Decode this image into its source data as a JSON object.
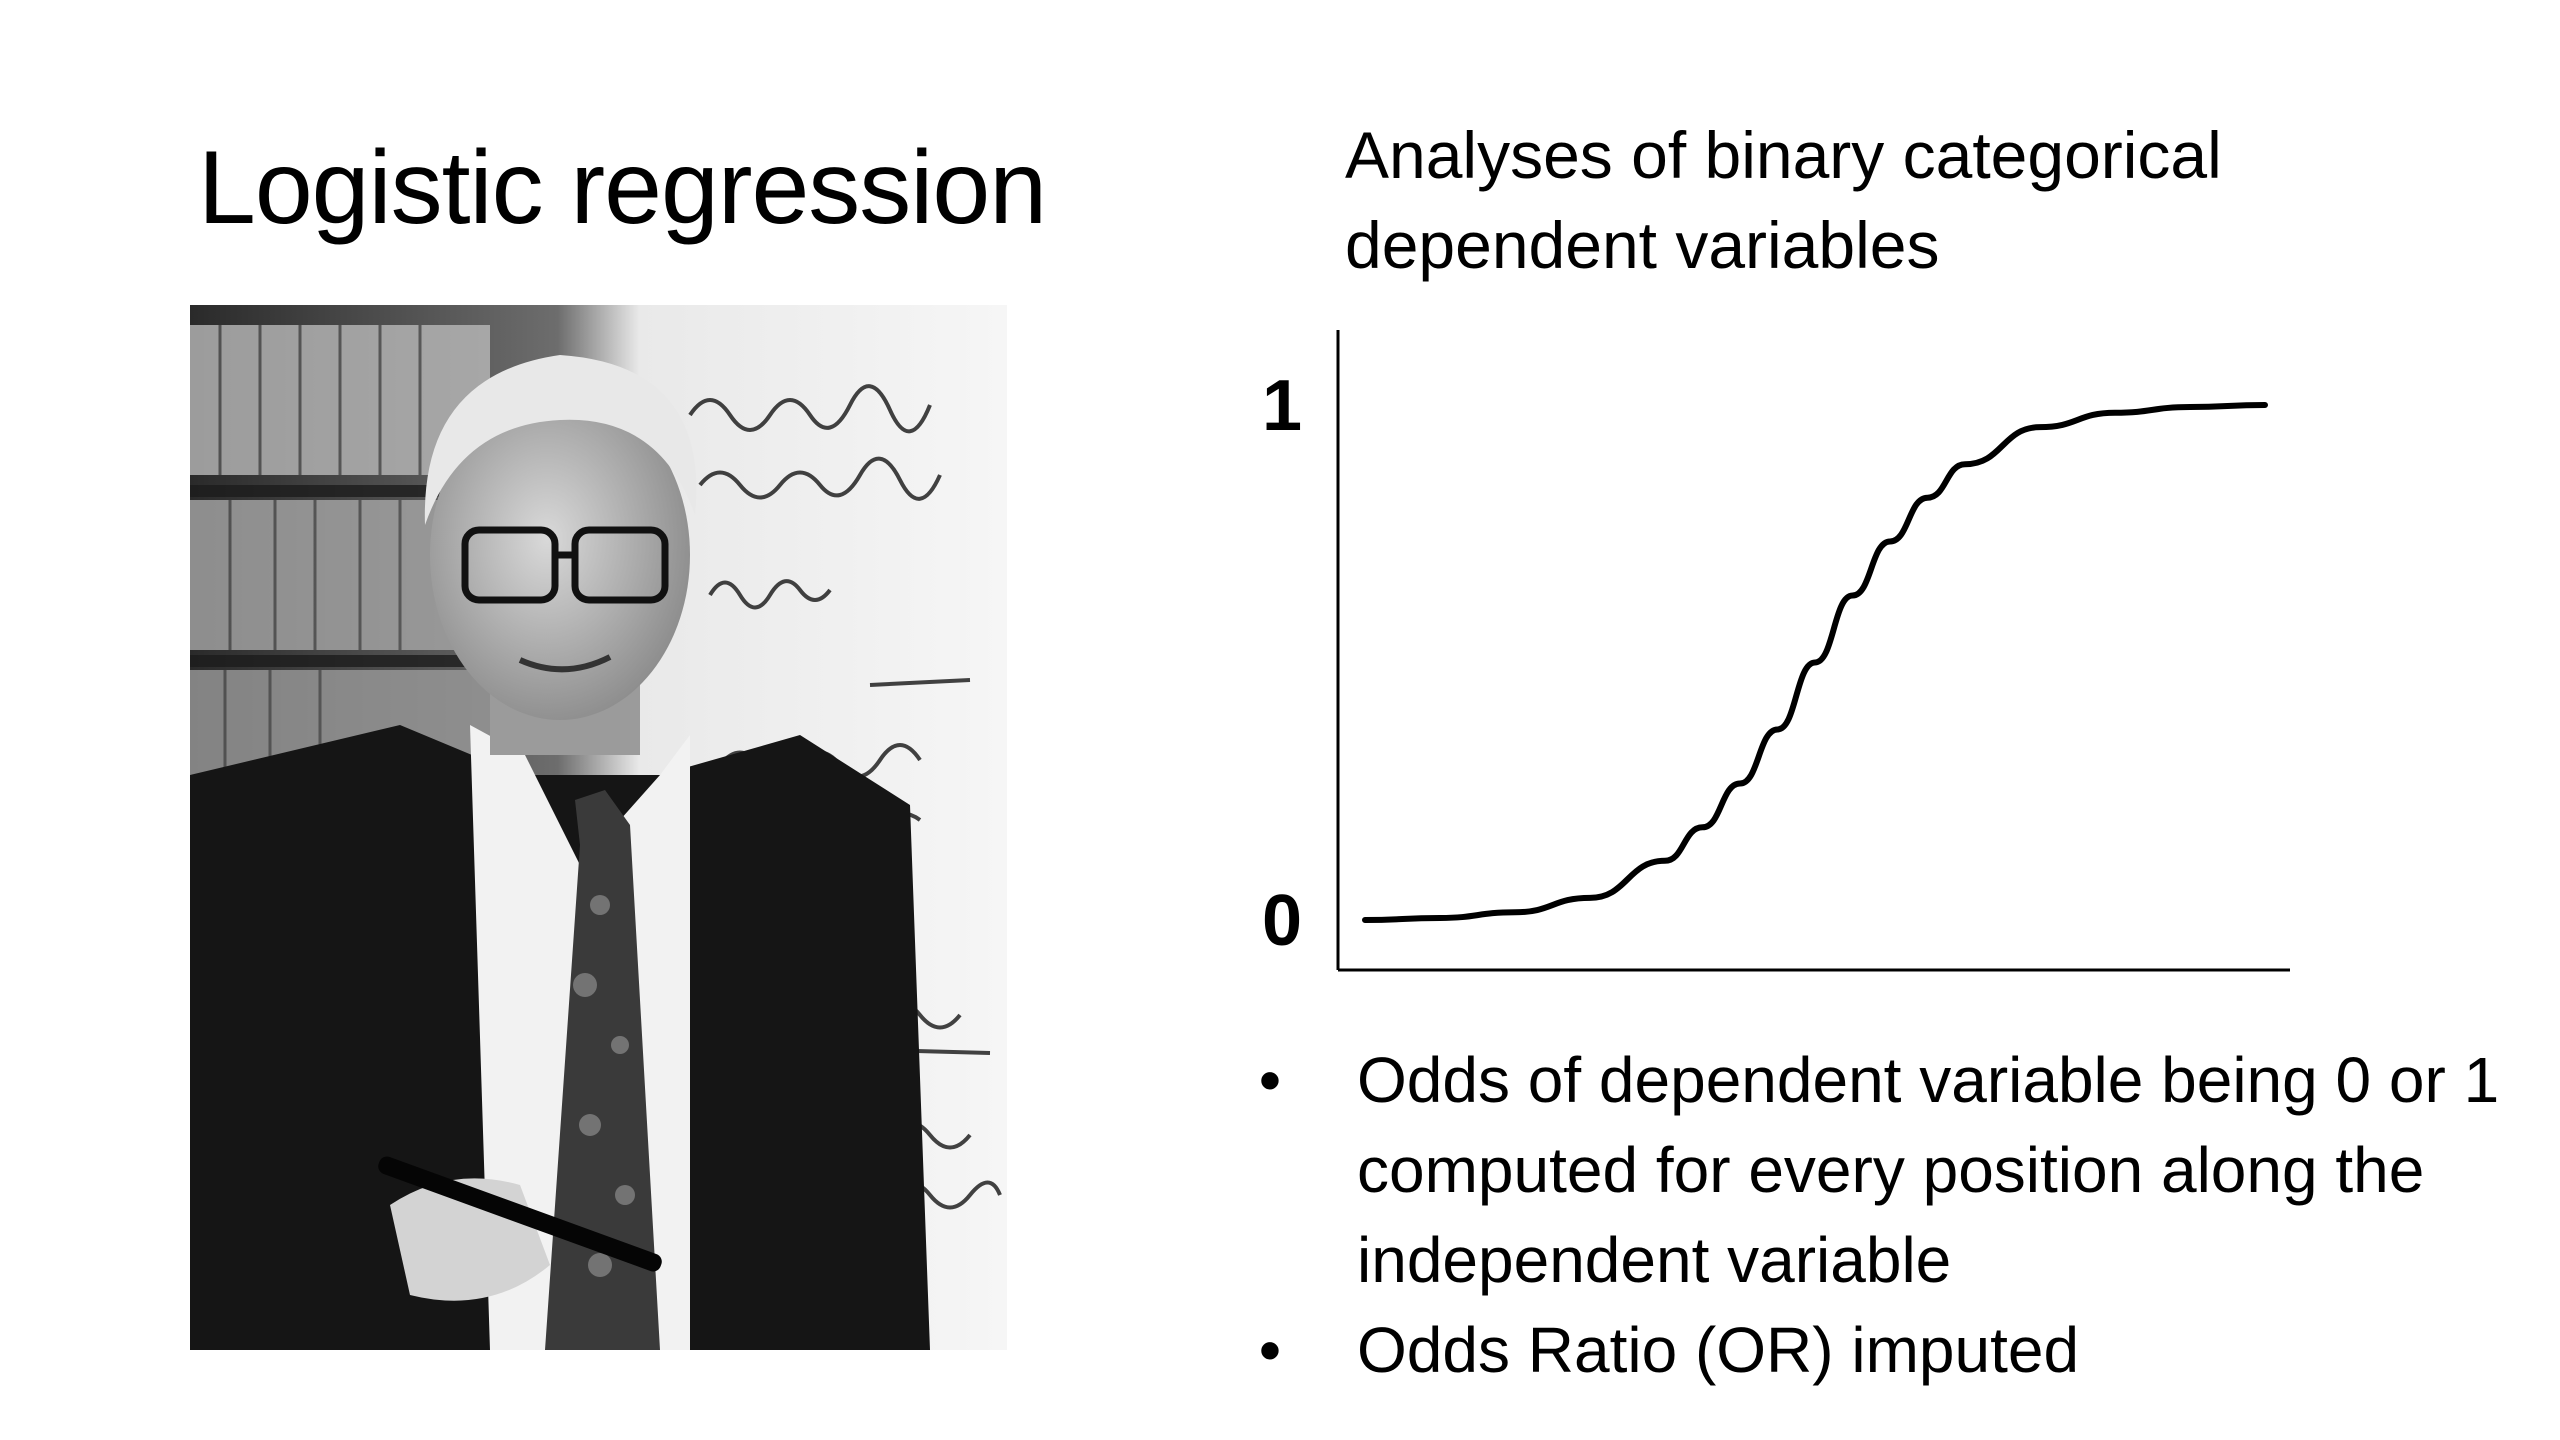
{
  "slide": {
    "title": "Logistic regression",
    "subtitle": "Analyses of binary categorical dependent variables",
    "photo": {
      "description": "black-and-white portrait photograph"
    },
    "bullets": [
      "Odds of dependent variable being 0 or 1 computed for every position along the independent variable",
      "Odds Ratio (OR) imputed"
    ],
    "bullet_symbol": "•"
  },
  "chart_data": {
    "type": "line",
    "title": "",
    "xlabel": "",
    "ylabel": "",
    "ylim": [
      0,
      1
    ],
    "xlim": [
      -6,
      6
    ],
    "yticks": [
      {
        "value": 0,
        "label": "0"
      },
      {
        "value": 1,
        "label": "1"
      }
    ],
    "series": [
      {
        "x": [
          -6,
          -5,
          -4,
          -3,
          -2,
          -1.5,
          -1,
          -0.5,
          0,
          0.5,
          1,
          1.5,
          2,
          3,
          4,
          5,
          6
        ],
        "y": [
          0.0,
          0.004,
          0.015,
          0.043,
          0.115,
          0.18,
          0.265,
          0.37,
          0.5,
          0.63,
          0.735,
          0.82,
          0.885,
          0.957,
          0.985,
          0.996,
          1.0
        ],
        "color": "#000000"
      }
    ],
    "axis_color": "#000000",
    "grid": false
  }
}
